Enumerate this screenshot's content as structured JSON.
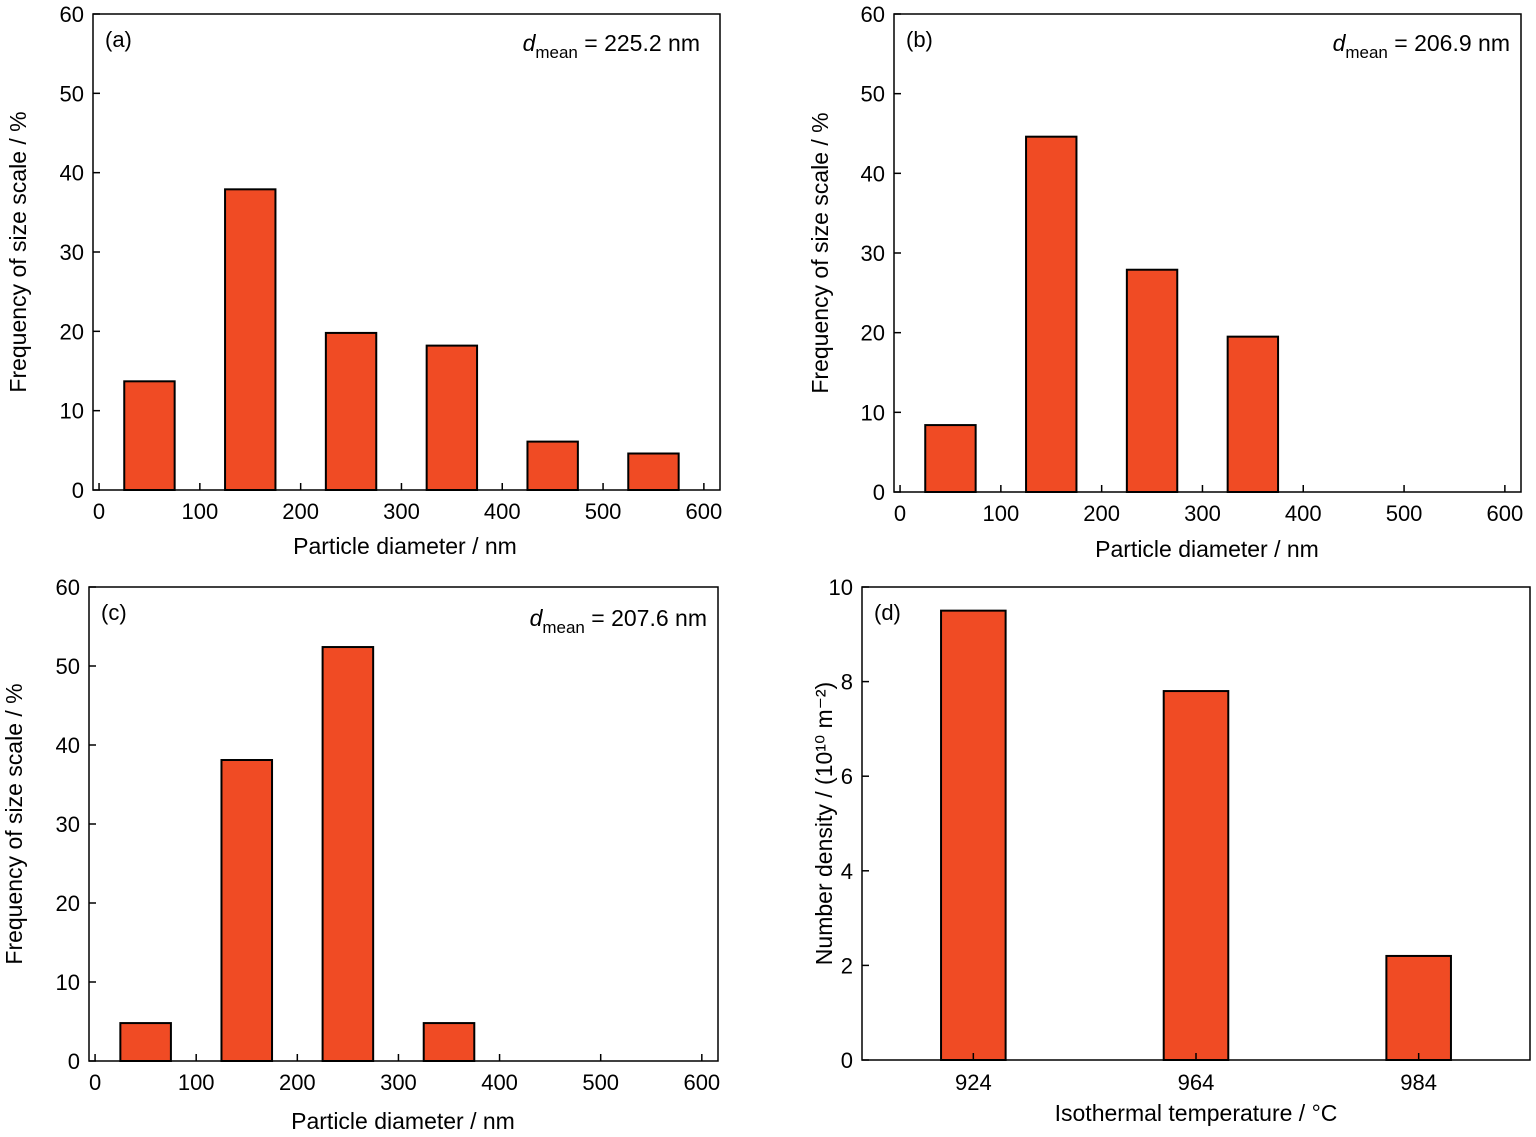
{
  "colors": {
    "bar_fill": "#f04b24",
    "bar_stroke": "#000000",
    "axis": "#000000",
    "background": "#ffffff"
  },
  "chart_data": [
    {
      "type": "bar",
      "panel_label": "(a)",
      "annotation": {
        "symbol": "d",
        "subscript": "mean",
        "value_text": " = 225.2 nm"
      },
      "xlabel": "Particle diameter / nm",
      "ylabel": "Frequency of size scale / %",
      "xlim": [
        -6,
        616
      ],
      "ylim": [
        0,
        60
      ],
      "xticks": [
        0,
        100,
        200,
        300,
        400,
        500,
        600
      ],
      "yticks": [
        0,
        10,
        20,
        30,
        40,
        50,
        60
      ],
      "bar_width": 50,
      "x": [
        50,
        150,
        250,
        350,
        450,
        550
      ],
      "values": [
        13.7,
        37.9,
        19.8,
        18.2,
        6.1,
        4.6
      ]
    },
    {
      "type": "bar",
      "panel_label": "(b)",
      "annotation": {
        "symbol": "d",
        "subscript": "mean",
        "value_text": " = 206.9 nm"
      },
      "xlabel": "Particle diameter / nm",
      "ylabel": "Frequency of size scale / %",
      "xlim": [
        -6,
        616
      ],
      "ylim": [
        0,
        60
      ],
      "xticks": [
        0,
        100,
        200,
        300,
        400,
        500,
        600
      ],
      "yticks": [
        0,
        10,
        20,
        30,
        40,
        50,
        60
      ],
      "bar_width": 50,
      "x": [
        50,
        150,
        250,
        350
      ],
      "values": [
        8.4,
        44.6,
        27.9,
        19.5
      ]
    },
    {
      "type": "bar",
      "panel_label": "(c)",
      "annotation": {
        "symbol": "d",
        "subscript": "mean",
        "value_text": " = 207.6 nm"
      },
      "xlabel": "Particle diameter / nm",
      "ylabel": "Frequency of size scale / %",
      "xlim": [
        -6,
        616
      ],
      "ylim": [
        0,
        60
      ],
      "xticks": [
        0,
        100,
        200,
        300,
        400,
        500,
        600
      ],
      "yticks": [
        0,
        10,
        20,
        30,
        40,
        50,
        60
      ],
      "bar_width": 50,
      "x": [
        50,
        150,
        250,
        350
      ],
      "widths": [
        50,
        50,
        50,
        50
      ],
      "values": [
        4.8,
        38.1,
        52.4,
        4.8
      ]
    },
    {
      "type": "bar",
      "panel_label": "(d)",
      "xlabel": "Isothermal temperature / °C",
      "ylabel": "Number density / (10¹⁰ m⁻²)",
      "ylim": [
        0,
        10
      ],
      "yticks": [
        0,
        2,
        4,
        6,
        8,
        10
      ],
      "categories": [
        "924",
        "964",
        "984"
      ],
      "values": [
        9.5,
        7.8,
        2.2
      ]
    }
  ]
}
